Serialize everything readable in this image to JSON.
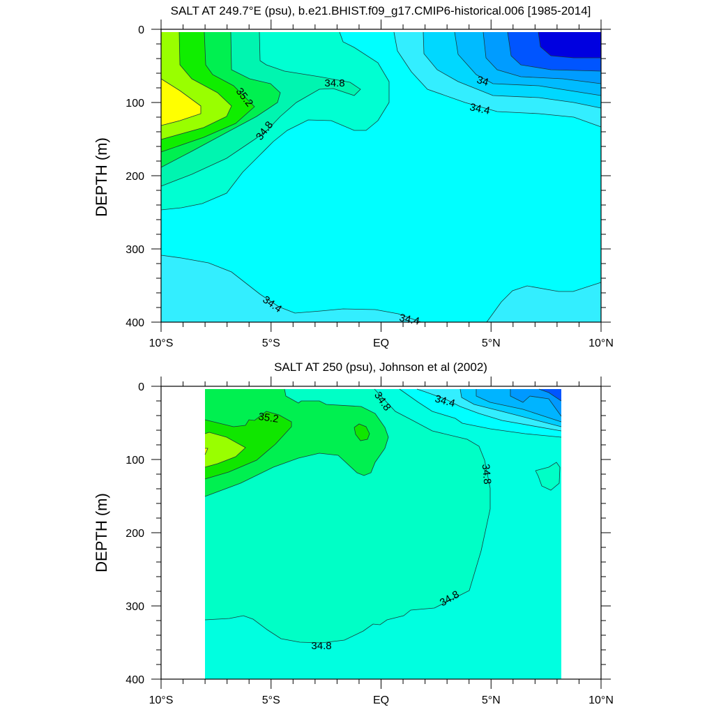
{
  "chart_data": [
    {
      "type": "contour",
      "title": "SALT AT 249.7°E (psu), b.e21.BHIST.f09_g17.CMIP6-historical.006 [1985-2014]",
      "ylabel": "DEPTH (m)",
      "xlim": [
        -10,
        10
      ],
      "ylim": [
        400,
        0
      ],
      "xticks": [
        -10,
        -5,
        0,
        5,
        10
      ],
      "xtick_labels": [
        "10°S",
        "5°S",
        "EQ",
        "5°N",
        "10°N"
      ],
      "yticks": [
        0,
        100,
        200,
        300,
        400
      ],
      "ytick_labels": [
        "0",
        "100",
        "200",
        "300",
        "400"
      ],
      "contour_interval": 0.2,
      "contour_labels": [
        "35.2",
        "34.8",
        "34.8",
        "34",
        "34.4",
        "34.4",
        "34.4"
      ],
      "fill_colors": [
        "#0000e0",
        "#0055ff",
        "#009cff",
        "#00bbff",
        "#00d8ff",
        "#33eeff",
        "#00ffff",
        "#00ffd2",
        "#00f5b0",
        "#00f050",
        "#10ee00",
        "#99ff00",
        "#ffff00"
      ],
      "grid": false
    },
    {
      "type": "contour",
      "title": "SALT AT 250 (psu), Johnson et al (2002)",
      "ylabel": "DEPTH (m)",
      "xlim": [
        -10,
        10
      ],
      "ylim": [
        400,
        0
      ],
      "xticks": [
        -10,
        -5,
        0,
        5,
        10
      ],
      "xtick_labels": [
        "10°S",
        "5°S",
        "EQ",
        "5°N",
        "10°N"
      ],
      "yticks": [
        0,
        100,
        200,
        300,
        400
      ],
      "ytick_labels": [
        "0",
        "100",
        "200",
        "300",
        "400"
      ],
      "contour_interval": 0.2,
      "contour_labels": [
        "35.2",
        "34.8",
        "34.4",
        "34.8",
        "34.8",
        "34.8"
      ],
      "fill_colors": [
        "#0055ff",
        "#0099ff",
        "#00b4ff",
        "#00ccff",
        "#33eeff",
        "#00ffff",
        "#00ffe0",
        "#00ffc6",
        "#00f050",
        "#10e600",
        "#99ff00",
        "#ffff00"
      ],
      "grid": false
    }
  ]
}
